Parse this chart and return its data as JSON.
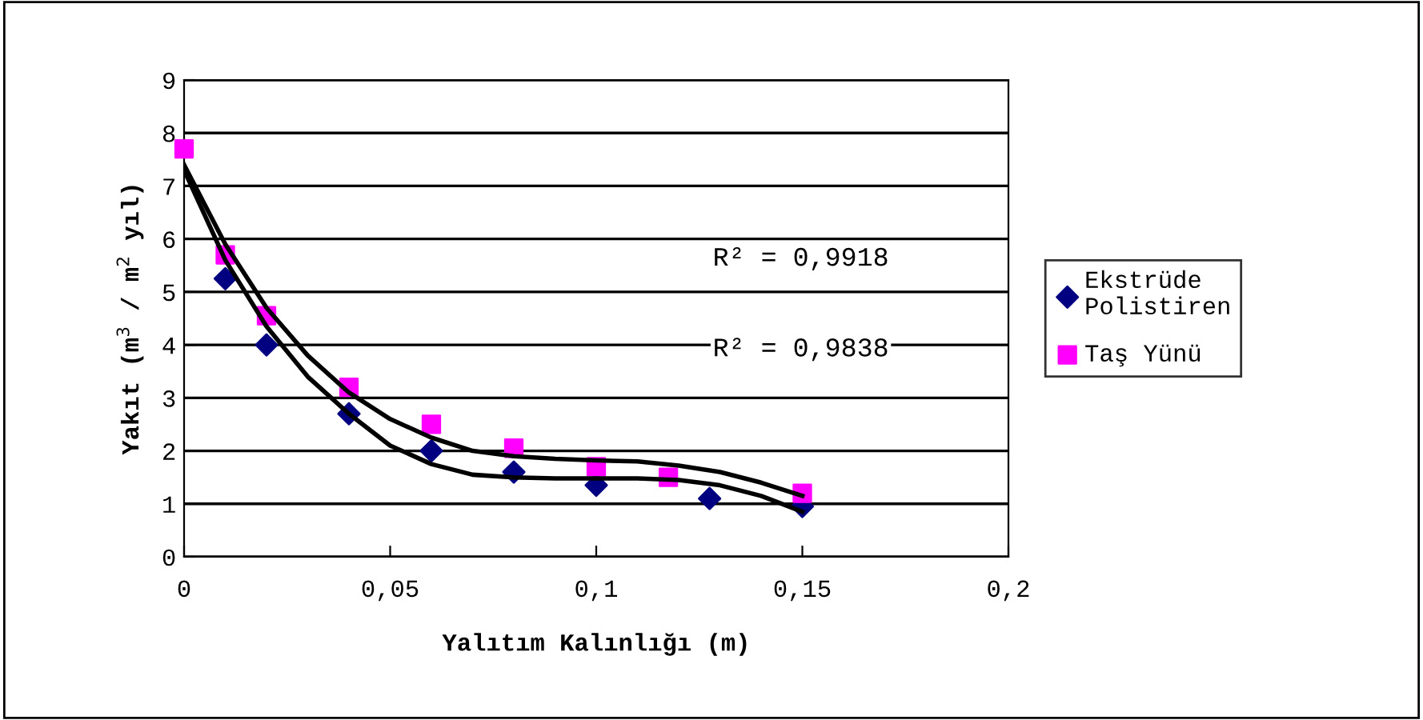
{
  "chart_data": {
    "type": "scatter",
    "xlabel": "Yalıtım Kalınlığı (m)",
    "ylabel": "Yakıt (m$^{3}$ / m$^{2}$ yıl)",
    "xlim": [
      0,
      0.2
    ],
    "xticks": [
      {
        "value": 0,
        "label": "0"
      },
      {
        "value": 0.05,
        "label": "0,05"
      },
      {
        "value": 0.1,
        "label": "0,1"
      },
      {
        "value": 0.15,
        "label": "0,15"
      },
      {
        "value": 0.2,
        "label": "0,2"
      }
    ],
    "ylim": [
      0,
      9
    ],
    "yticks": [
      0,
      1,
      2,
      3,
      4,
      5,
      6,
      7,
      8,
      9
    ],
    "grid": "y",
    "legend": "right",
    "annotations": [
      "R² = 0,9918",
      "R² = 0,9838"
    ],
    "series": [
      {
        "name": "Ekstrüde\nPolistiren",
        "color": "#000080",
        "marker": "diamond",
        "x": [
          0.01,
          0.02,
          0.04,
          0.06,
          0.08,
          0.1,
          0.1275,
          0.15
        ],
        "values": [
          5.25,
          4.0,
          2.7,
          2.0,
          1.6,
          1.35,
          1.1,
          0.95
        ]
      },
      {
        "name": "Taş Yünü",
        "color": "#ff00ff",
        "marker": "square",
        "x": [
          0,
          0.01,
          0.02,
          0.04,
          0.06,
          0.08,
          0.1,
          0.1175,
          0.15
        ],
        "values": [
          7.7,
          5.7,
          4.55,
          3.2,
          2.5,
          2.05,
          1.7,
          1.5,
          1.2
        ]
      },
      {
        "type": "line",
        "color": "#000000",
        "marker": "none",
        "x": [
          0,
          0.01,
          0.02,
          0.03,
          0.04,
          0.05,
          0.06,
          0.07,
          0.08,
          0.09,
          0.1,
          0.11,
          0.12,
          0.13,
          0.14,
          0.15
        ],
        "values": [
          7.4,
          5.9,
          4.7,
          3.8,
          3.1,
          2.6,
          2.25,
          2.0,
          1.9,
          1.85,
          1.82,
          1.8,
          1.72,
          1.6,
          1.4,
          1.15
        ]
      },
      {
        "type": "line",
        "color": "#000000",
        "marker": "none",
        "x": [
          0,
          0.01,
          0.02,
          0.03,
          0.04,
          0.05,
          0.06,
          0.07,
          0.08,
          0.09,
          0.1,
          0.11,
          0.12,
          0.13,
          0.14,
          0.15
        ],
        "values": [
          7.3,
          5.6,
          4.35,
          3.4,
          2.7,
          2.1,
          1.75,
          1.55,
          1.5,
          1.48,
          1.48,
          1.48,
          1.45,
          1.35,
          1.15,
          0.85
        ]
      }
    ]
  }
}
